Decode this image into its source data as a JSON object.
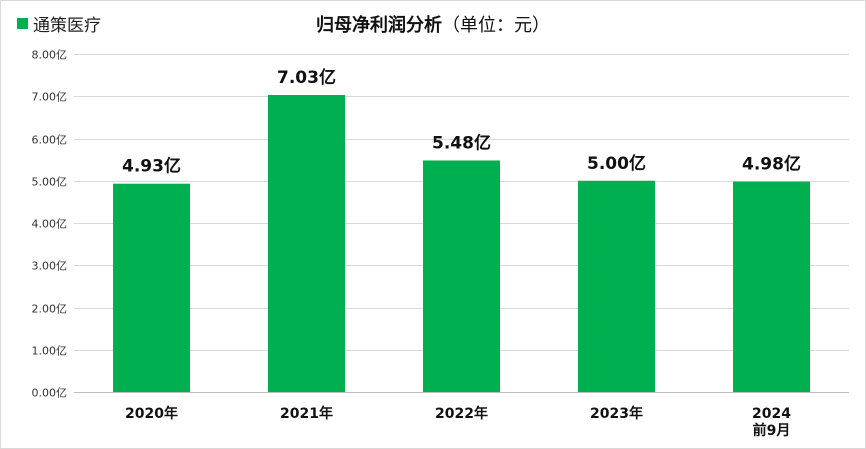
{
  "legend": {
    "label": "通策医疗",
    "color": "#00b050"
  },
  "title": {
    "main": "归母净利润分析",
    "unit": "（单位：元）"
  },
  "chart_data": {
    "type": "bar",
    "title": "归母净利润分析（单位：元）",
    "xlabel": "",
    "ylabel": "",
    "categories": [
      "2020年",
      "2021年",
      "2022年",
      "2023年",
      "2024\n前9月"
    ],
    "series": [
      {
        "name": "通策医疗",
        "values": [
          4.93,
          7.03,
          5.48,
          5.0,
          4.98
        ],
        "data_labels": [
          "4.93亿",
          "7.03亿",
          "5.48亿",
          "5.00亿",
          "4.98亿"
        ],
        "color": "#00b050"
      }
    ],
    "ylim": [
      0,
      8
    ],
    "yticks": [
      0,
      1,
      2,
      3,
      4,
      5,
      6,
      7,
      8
    ],
    "ytick_labels": [
      "0.00亿",
      "1.00亿",
      "2.00亿",
      "3.00亿",
      "4.00亿",
      "5.00亿",
      "6.00亿",
      "7.00亿",
      "8.00亿"
    ],
    "grid": true,
    "legend_position": "top-left"
  }
}
